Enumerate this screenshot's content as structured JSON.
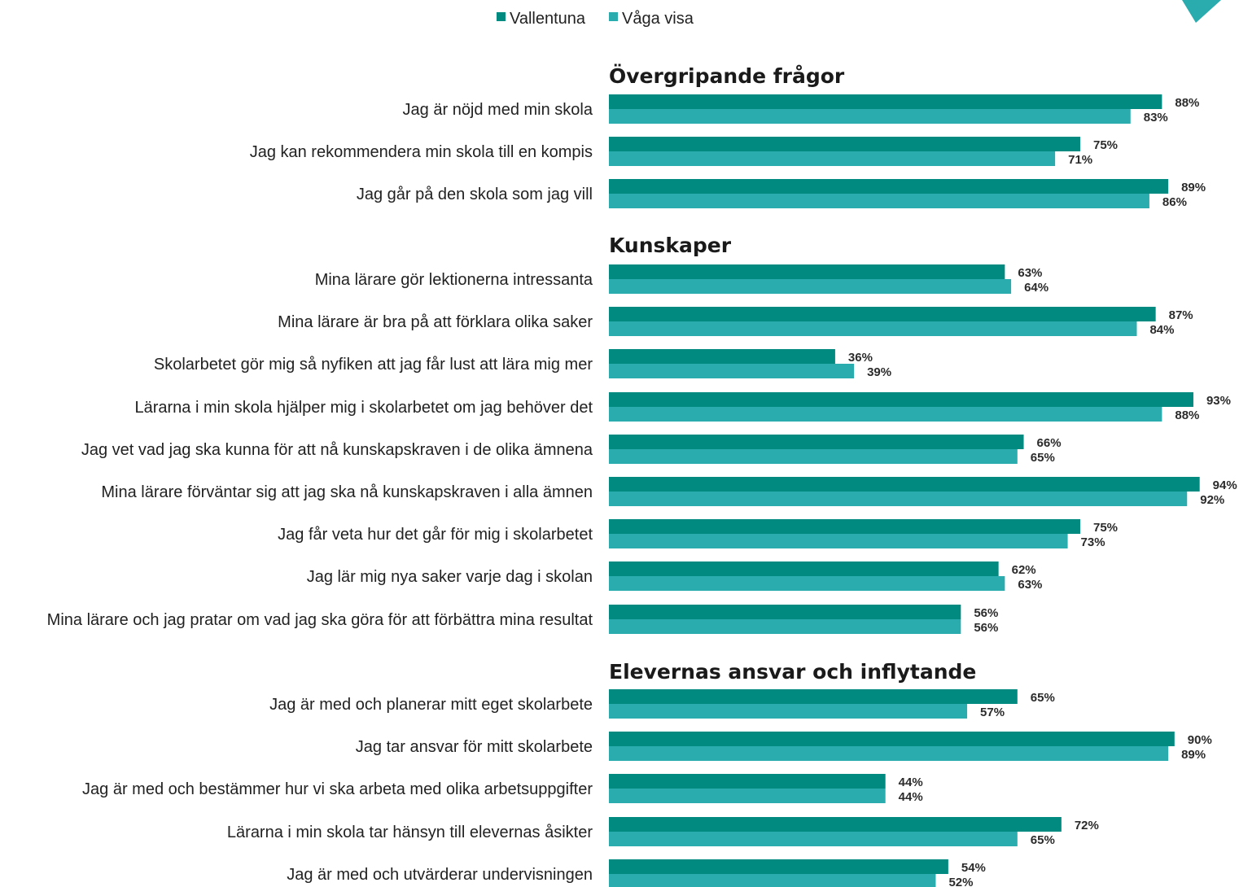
{
  "colors": {
    "vallentuna": "#008a80",
    "vaga_visa": "#2aabae",
    "logo": "#2aabae"
  },
  "legend": [
    {
      "name": "Vallentuna",
      "color": "#008a80"
    },
    {
      "name": "Våga visa",
      "color": "#2aabae"
    }
  ],
  "logo": {
    "icon": "triangle-logo-icon"
  },
  "chart_data": {
    "type": "bar",
    "orientation": "horizontal",
    "unit": "%",
    "xlim": [
      0,
      100
    ],
    "grid": false,
    "legend_position": "top-center",
    "series_names": [
      "Vallentuna",
      "Våga visa"
    ],
    "sections": [
      {
        "title": "Övergripande frågor",
        "items": [
          {
            "label": "Jag är nöjd med min skola",
            "values": [
              88,
              83
            ]
          },
          {
            "label": "Jag kan rekommendera min skola till en kompis",
            "values": [
              75,
              71
            ]
          },
          {
            "label": "Jag går på den skola som jag vill",
            "values": [
              89,
              86
            ]
          }
        ]
      },
      {
        "title": "Kunskaper",
        "items": [
          {
            "label": "Mina lärare gör lektionerna intressanta",
            "values": [
              63,
              64
            ]
          },
          {
            "label": "Mina lärare är bra på att förklara olika saker",
            "values": [
              87,
              84
            ]
          },
          {
            "label": "Skolarbetet gör mig så nyfiken att jag får lust att lära mig mer",
            "values": [
              36,
              39
            ]
          },
          {
            "label": "Lärarna i min skola hjälper mig i skolarbetet om jag behöver det",
            "values": [
              93,
              88
            ]
          },
          {
            "label": "Jag vet vad jag ska kunna för att nå kunskapskraven i de olika ämnena",
            "values": [
              66,
              65
            ]
          },
          {
            "label": "Mina lärare förväntar sig att jag ska nå kunskapskraven i alla ämnen",
            "values": [
              94,
              92
            ]
          },
          {
            "label": "Jag får veta hur det går för mig i skolarbetet",
            "values": [
              75,
              73
            ]
          },
          {
            "label": "Jag lär mig nya saker varje dag i skolan",
            "values": [
              62,
              63
            ]
          },
          {
            "label": "Mina lärare och jag pratar om vad jag ska göra för att förbättra mina resultat",
            "values": [
              56,
              56
            ]
          }
        ]
      },
      {
        "title": "Elevernas ansvar och inflytande",
        "items": [
          {
            "label": "Jag är med och planerar mitt eget skolarbete",
            "values": [
              65,
              57
            ]
          },
          {
            "label": "Jag tar ansvar för mitt skolarbete",
            "values": [
              90,
              89
            ]
          },
          {
            "label": "Jag är med och bestämmer hur vi ska arbeta med olika arbetsuppgifter",
            "values": [
              44,
              44
            ]
          },
          {
            "label": "Lärarna i min skola tar hänsyn till elevernas åsikter",
            "values": [
              72,
              65
            ]
          },
          {
            "label": "Jag är med och utvärderar undervisningen",
            "values": [
              54,
              52
            ]
          }
        ]
      }
    ]
  }
}
